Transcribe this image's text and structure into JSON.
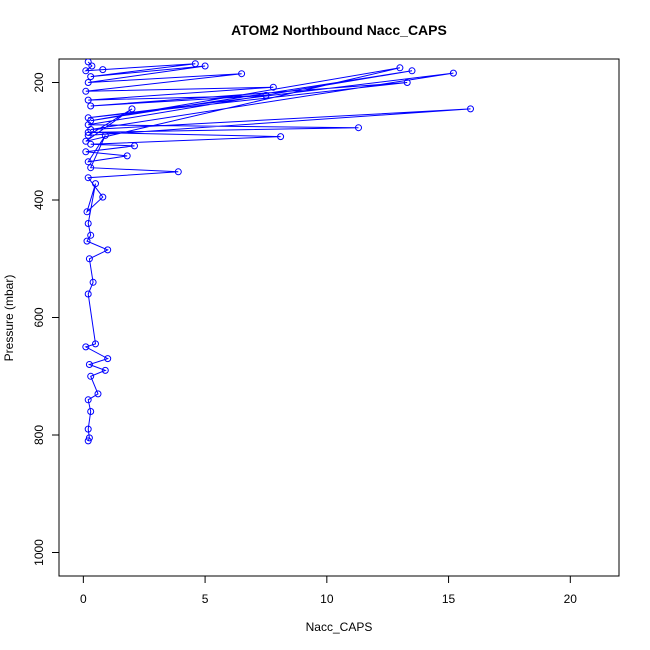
{
  "chart_data": {
    "type": "line",
    "title": "ATOM2 Northbound Nacc_CAPS",
    "xlabel": "Nacc_CAPS",
    "ylabel": "Pressure (mbar)",
    "xlim": [
      -1,
      22
    ],
    "ylim": [
      1040,
      160
    ],
    "y_reversed": true,
    "x_ticks": [
      0,
      5,
      10,
      15,
      20
    ],
    "y_ticks": [
      200,
      400,
      600,
      800,
      1000
    ],
    "series_color": "#0000ff",
    "marker": "open-circle",
    "series": [
      {
        "x": [
          0.2,
          0.35,
          0.1,
          0.8,
          4.6,
          0.3,
          5.0,
          0.2,
          6.5,
          0.1,
          7.8,
          0.2,
          7.5,
          0.3,
          13.3,
          0.2,
          15.2,
          0.3,
          15.9,
          0.2,
          2.0,
          0.1,
          13.0,
          0.3,
          13.5,
          0.2,
          11.3,
          0.2,
          8.1,
          0.3,
          2.1,
          0.1,
          1.8,
          0.2,
          0.9,
          0.3,
          3.9,
          0.2,
          0.8,
          0.15,
          0.5,
          0.2,
          0.3,
          0.15,
          1.0,
          0.25,
          0.4,
          0.2,
          0.5,
          0.1,
          1.0,
          0.25,
          0.9,
          0.3,
          0.6,
          0.2,
          0.3,
          0.2,
          0.25,
          0.2
        ],
        "y": [
          165,
          172,
          180,
          178,
          168,
          190,
          172,
          200,
          185,
          215,
          208,
          230,
          222,
          240,
          200,
          260,
          184,
          280,
          245,
          290,
          245,
          300,
          175,
          265,
          180,
          272,
          277,
          285,
          292,
          305,
          308,
          318,
          325,
          335,
          290,
          345,
          352,
          362,
          395,
          420,
          372,
          440,
          460,
          470,
          485,
          500,
          540,
          560,
          645,
          650,
          670,
          680,
          690,
          700,
          730,
          740,
          760,
          790,
          805,
          810
        ]
      }
    ]
  }
}
